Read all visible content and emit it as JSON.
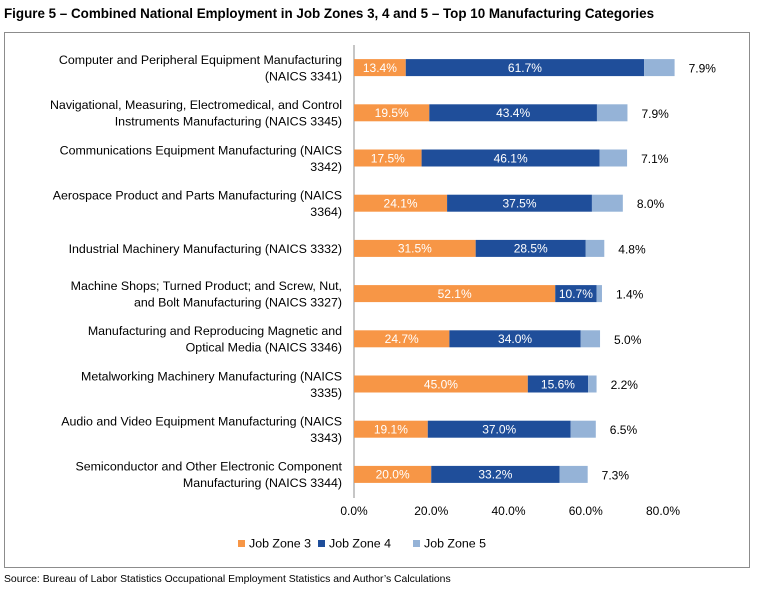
{
  "title": "Figure 5 – Combined National Employment in Job Zones 3, 4 and 5 – Top 10 Manufacturing Categories",
  "source": "Source: Bureau of Labor Statistics Occupational Employment Statistics and Author’s Calculations",
  "colors": {
    "job_zone_3": "#f79646",
    "job_zone_4": "#1f4e9a",
    "job_zone_5": "#95b3d7",
    "frame": "#8c8c8c"
  },
  "chart_data": {
    "type": "bar",
    "orientation": "horizontal",
    "stacked": true,
    "categories": [
      [
        "Computer and Peripheral Equipment Manufacturing",
        "(NAICS 3341)"
      ],
      [
        "Navigational, Measuring, Electromedical, and Control",
        "Instruments Manufacturing (NAICS 3345)"
      ],
      [
        "Communications Equipment Manufacturing (NAICS",
        "3342)"
      ],
      [
        "Aerospace Product and Parts Manufacturing (NAICS",
        "3364)"
      ],
      [
        "Industrial Machinery Manufacturing (NAICS 3332)"
      ],
      [
        "Machine Shops; Turned Product; and Screw, Nut,",
        "and Bolt Manufacturing (NAICS 3327)"
      ],
      [
        "Manufacturing and Reproducing Magnetic and",
        "Optical Media (NAICS 3346)"
      ],
      [
        "Metalworking Machinery Manufacturing (NAICS",
        "3335)"
      ],
      [
        "Audio and Video Equipment Manufacturing (NAICS",
        "3343)"
      ],
      [
        "Semiconductor and Other Electronic Component",
        "Manufacturing (NAICS 3344)"
      ]
    ],
    "series": [
      {
        "name": "Job Zone 3",
        "values": [
          13.4,
          19.5,
          17.5,
          24.1,
          31.5,
          52.1,
          24.7,
          45.0,
          19.1,
          20.0
        ],
        "labels": [
          "13.4%",
          "19.5%",
          "17.5%",
          "24.1%",
          "31.5%",
          "52.1%",
          "24.7%",
          "45.0%",
          "19.1%",
          "20.0%"
        ]
      },
      {
        "name": "Job Zone 4",
        "values": [
          61.7,
          43.4,
          46.1,
          37.5,
          28.5,
          10.7,
          34.0,
          15.6,
          37.0,
          33.2
        ],
        "labels": [
          "61.7%",
          "43.4%",
          "46.1%",
          "37.5%",
          "28.5%",
          "10.7%",
          "34.0%",
          "15.6%",
          "37.0%",
          "33.2%"
        ]
      },
      {
        "name": "Job Zone 5",
        "values": [
          7.9,
          7.9,
          7.1,
          8.0,
          4.8,
          1.4,
          5.0,
          2.2,
          6.5,
          7.3
        ],
        "labels": [
          "7.9%",
          "7.9%",
          "7.1%",
          "8.0%",
          "4.8%",
          "1.4%",
          "5.0%",
          "2.2%",
          "6.5%",
          "7.3%"
        ]
      }
    ],
    "xlim": [
      0,
      80
    ],
    "xticks": [
      0,
      20,
      40,
      60,
      80
    ],
    "xtick_labels": [
      "0.0%",
      "20.0%",
      "40.0%",
      "60.0%",
      "80.0%"
    ],
    "xlabel": "",
    "ylabel": "",
    "grid": false,
    "legend": {
      "position": "bottom",
      "entries": [
        "Job Zone 3",
        "Job Zone 4",
        "Job Zone 5"
      ]
    }
  }
}
